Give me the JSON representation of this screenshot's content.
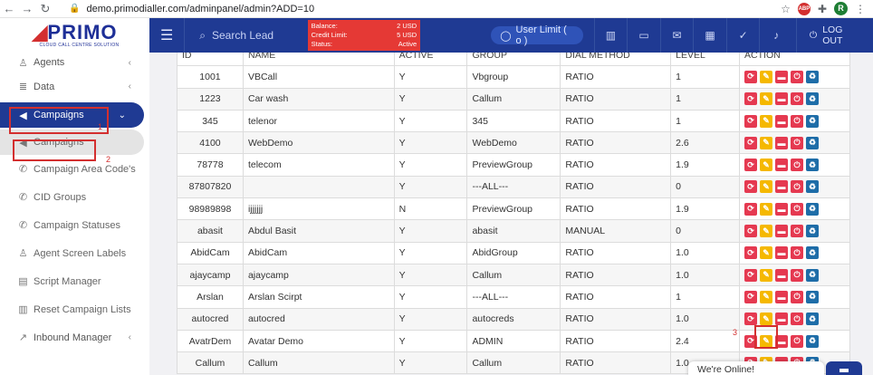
{
  "browser": {
    "url": "demo.primodialler.com/adminpanel/admin?ADD=10",
    "profile_initial": "R",
    "abp_label": "ABP"
  },
  "logo": {
    "word": "PRIMO",
    "tagline": "CLOUD CALL CENTRE SOLUTION"
  },
  "topnav": {
    "search_label": "Search Lead",
    "balance_label": "Balance:",
    "balance_value": "2 USD",
    "credit_label": "Credit Limit:",
    "credit_value": "5 USD",
    "status_label": "Status:",
    "status_value": "Active",
    "user_limit": "User Limit ( o )",
    "logout": "LOG OUT"
  },
  "sidebar": {
    "agents": "Agents",
    "data": "Data",
    "campaigns": "Campaigns",
    "sub_campaigns": "Campaigns",
    "area_codes": "Campaign Area Code's",
    "cid_groups": "CID Groups",
    "statuses": "Campaign Statuses",
    "screen_labels": "Agent Screen Labels",
    "script_manager": "Script Manager",
    "reset_lists": "Reset Campaign Lists",
    "inbound": "Inbound Manager"
  },
  "table": {
    "headers": [
      "ID",
      "NAME",
      "ACTIVE",
      "GROUP",
      "DIAL METHOD",
      "LEVEL",
      "ACTION"
    ],
    "rows": [
      [
        "1001",
        "VBCall",
        "Y",
        "Vbgroup",
        "RATIO",
        "1"
      ],
      [
        "1223",
        "Car wash",
        "Y",
        "Callum",
        "RATIO",
        "1"
      ],
      [
        "345",
        "telenor",
        "Y",
        "345",
        "RATIO",
        "1"
      ],
      [
        "4100",
        "WebDemo",
        "Y",
        "WebDemo",
        "RATIO",
        "2.6"
      ],
      [
        "78778",
        "telecom",
        "Y",
        "PreviewGroup",
        "RATIO",
        "1.9"
      ],
      [
        "87807820",
        "",
        "Y",
        "---ALL---",
        "RATIO",
        "0"
      ],
      [
        "98989898",
        "ijjjjjj",
        "N",
        "PreviewGroup",
        "RATIO",
        "1.9"
      ],
      [
        "abasit",
        "Abdul Basit",
        "Y",
        "abasit",
        "MANUAL",
        "0"
      ],
      [
        "AbidCam",
        "AbidCam",
        "Y",
        "AbidGroup",
        "RATIO",
        "1.0"
      ],
      [
        "ajaycamp",
        "ajaycamp",
        "Y",
        "Callum",
        "RATIO",
        "1.0"
      ],
      [
        "Arslan",
        "Arslan Scirpt",
        "Y",
        "---ALL---",
        "RATIO",
        "1"
      ],
      [
        "autocred",
        "autocred",
        "Y",
        "autocreds",
        "RATIO",
        "1.0"
      ],
      [
        "AvatrDem",
        "Avatar Demo",
        "Y",
        "ADMIN",
        "RATIO",
        "2.4"
      ],
      [
        "Callum",
        "Callum",
        "Y",
        "Callum",
        "RATIO",
        "1.0"
      ]
    ]
  },
  "annotations": {
    "n1": "1",
    "n2": "2",
    "n3": "3"
  },
  "chat": {
    "label": "We're Online!"
  },
  "colors": {
    "nav": "#1f3a93",
    "brand_red": "#d32f2f",
    "action_red": "#e53950",
    "action_yellow": "#f5b800",
    "action_blue": "#1e6da8"
  }
}
